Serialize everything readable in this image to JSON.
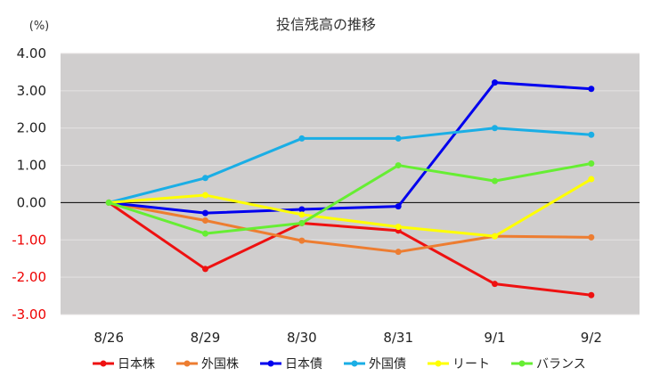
{
  "chart_data": {
    "type": "line",
    "title": "投信残高の推移",
    "unit_label": "(%)",
    "categories": [
      "8/26",
      "8/29",
      "8/30",
      "8/31",
      "9/1",
      "9/2"
    ],
    "ylim": [
      -3.0,
      4.0
    ],
    "y_ticks": [
      "4.00",
      "3.00",
      "2.00",
      "1.00",
      "0.00",
      "-1.00",
      "-2.00",
      "-3.00"
    ],
    "y_tick_values": [
      4,
      3,
      2,
      1,
      0,
      -1,
      -2,
      -3
    ],
    "grid": true,
    "legend_position": "bottom",
    "plot_background": "#d0cece",
    "series": [
      {
        "name": "日本株",
        "color": "#ee1111",
        "values": [
          0.0,
          -1.78,
          -0.55,
          -0.75,
          -2.18,
          -2.48
        ]
      },
      {
        "name": "外国株",
        "color": "#ed7d31",
        "values": [
          0.0,
          -0.48,
          -1.02,
          -1.32,
          -0.9,
          -0.93
        ]
      },
      {
        "name": "日本債",
        "color": "#0000ee",
        "values": [
          0.0,
          -0.28,
          -0.18,
          -0.1,
          3.22,
          3.05
        ]
      },
      {
        "name": "外国債",
        "color": "#1aaee5",
        "values": [
          0.0,
          0.66,
          1.72,
          1.72,
          2.0,
          1.82
        ]
      },
      {
        "name": "リート",
        "color": "#ffff00",
        "values": [
          0.0,
          0.2,
          -0.32,
          -0.65,
          -0.9,
          0.63
        ]
      },
      {
        "name": "バランス",
        "color": "#66ee33",
        "values": [
          0.0,
          -0.83,
          -0.55,
          1.0,
          0.58,
          1.05
        ]
      }
    ]
  }
}
